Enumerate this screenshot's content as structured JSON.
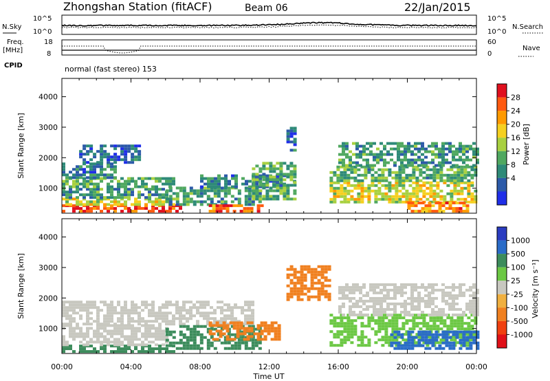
{
  "header": {
    "station": "Zhongshan Station (fitACF)",
    "beam": "Beam 06",
    "date": "22/Jan/2015"
  },
  "noise_panel": {
    "left_label": "N.Sky",
    "right_label": "N.Search",
    "left_ticks": [
      "10^5",
      "10^0"
    ],
    "right_ticks": [
      "10^5",
      "10^0"
    ]
  },
  "freq_panel": {
    "left_label_1": "Freq.",
    "left_label_2": "[MHz]",
    "left_ticks": [
      "18",
      "8"
    ],
    "right_label": "Nave",
    "right_ticks": [
      "60",
      "0"
    ]
  },
  "cpid": {
    "label": "CPID",
    "text": "normal (fast stereo) 153"
  },
  "power_panel": {
    "ylabel": "Slant Range [km]",
    "cb_label": "Power [dB]",
    "cb_ticks": [
      "28",
      "24",
      "20",
      "16",
      "12",
      "8",
      "4"
    ],
    "colors": [
      "#e0101e",
      "#ff5a10",
      "#ff9a00",
      "#f5d020",
      "#a8d040",
      "#50a860",
      "#2e8a78",
      "#2c5aa8",
      "#1f2ee8"
    ]
  },
  "velocity_panel": {
    "ylabel": "Slant Range [km]",
    "cb_label": "Velocity [m s⁻¹]",
    "cb_ticks": [
      "1000",
      "500",
      "100",
      "25",
      "-25",
      "-100",
      "-500",
      "-1000"
    ],
    "colors": [
      "#2a3cc0",
      "#2a6cc8",
      "#3c8c5c",
      "#6cc844",
      "#c8c8c0",
      "#f0b040",
      "#f08020",
      "#f04010",
      "#e01018"
    ]
  },
  "xaxis": {
    "label": "Time UT",
    "ticks": [
      "00:00",
      "04:00",
      "08:00",
      "12:00",
      "16:00",
      "20:00",
      "00:00"
    ]
  },
  "chart_data": [
    {
      "type": "heatmap",
      "title": "",
      "xlabel": "",
      "ylabel": "Slant Range [km]",
      "xlim": [
        0,
        24
      ],
      "ylim": [
        180,
        4600
      ],
      "yticks": [
        1000,
        2000,
        3000,
        4000
      ],
      "colorbar_label": "Power [dB]",
      "colorbar_ticks": [
        28,
        24,
        20,
        16,
        12,
        8,
        4
      ],
      "colorbar_range": [
        0,
        32
      ],
      "regions": [
        {
          "t0": 0.0,
          "t1": 6.8,
          "r0": 200,
          "r1": 420,
          "value": 28
        },
        {
          "t0": 0.0,
          "t1": 6.5,
          "r0": 420,
          "r1": 650,
          "value": 18
        },
        {
          "t0": 0.0,
          "t1": 6.0,
          "r0": 650,
          "r1": 1000,
          "value": 10
        },
        {
          "t0": 0.0,
          "t1": 6.5,
          "r0": 1000,
          "r1": 1300,
          "value": 12
        },
        {
          "t0": 0.0,
          "t1": 3.0,
          "r0": 1300,
          "r1": 1800,
          "value": 8
        },
        {
          "t0": 1.0,
          "t1": 4.5,
          "r0": 1800,
          "r1": 2400,
          "value": 6
        },
        {
          "t0": 6.0,
          "t1": 11.5,
          "r0": 420,
          "r1": 1000,
          "value": 10
        },
        {
          "t0": 8.5,
          "t1": 11.5,
          "r0": 200,
          "r1": 420,
          "value": 26
        },
        {
          "t0": 8.0,
          "t1": 13.5,
          "r0": 1000,
          "r1": 1400,
          "value": 8
        },
        {
          "t0": 11.0,
          "t1": 13.5,
          "r0": 600,
          "r1": 1800,
          "value": 12
        },
        {
          "t0": 13.0,
          "t1": 13.5,
          "r0": 2200,
          "r1": 3000,
          "value": 6
        },
        {
          "t0": 15.5,
          "t1": 24.0,
          "r0": 500,
          "r1": 1200,
          "value": 18
        },
        {
          "t0": 15.5,
          "t1": 24.0,
          "r0": 1200,
          "r1": 1700,
          "value": 12
        },
        {
          "t0": 16.0,
          "t1": 24.0,
          "r0": 1700,
          "r1": 2500,
          "value": 10
        },
        {
          "t0": 20.0,
          "t1": 23.5,
          "r0": 200,
          "r1": 500,
          "value": 24
        }
      ]
    },
    {
      "type": "heatmap",
      "title": "",
      "xlabel": "Time UT",
      "ylabel": "Slant Range [km]",
      "xlim": [
        0,
        24
      ],
      "ylim": [
        180,
        4600
      ],
      "yticks": [
        1000,
        2000,
        3000,
        4000
      ],
      "colorbar_label": "Velocity [m s⁻¹]",
      "colorbar_ticks": [
        1000,
        500,
        100,
        25,
        -25,
        -100,
        -500,
        -1000
      ],
      "regions": [
        {
          "t0": 0.0,
          "t1": 6.5,
          "r0": 200,
          "r1": 420,
          "value": 400
        },
        {
          "t0": 0.0,
          "t1": 6.0,
          "r0": 420,
          "r1": 1100,
          "value": 20
        },
        {
          "t0": 0.0,
          "t1": 11.0,
          "r0": 1100,
          "r1": 1900,
          "value": 0
        },
        {
          "t0": 6.0,
          "t1": 11.5,
          "r0": 300,
          "r1": 1100,
          "value": 150
        },
        {
          "t0": 8.5,
          "t1": 12.5,
          "r0": 600,
          "r1": 1200,
          "value": -150
        },
        {
          "t0": 13.0,
          "t1": 15.5,
          "r0": 1900,
          "r1": 3000,
          "value": -200
        },
        {
          "t0": 15.5,
          "t1": 24.0,
          "r0": 400,
          "r1": 1400,
          "value": 80
        },
        {
          "t0": 16.0,
          "t1": 24.0,
          "r0": 1400,
          "r1": 2400,
          "value": 0
        },
        {
          "t0": 19.0,
          "t1": 24.0,
          "r0": 300,
          "r1": 900,
          "value": 700
        }
      ]
    }
  ]
}
